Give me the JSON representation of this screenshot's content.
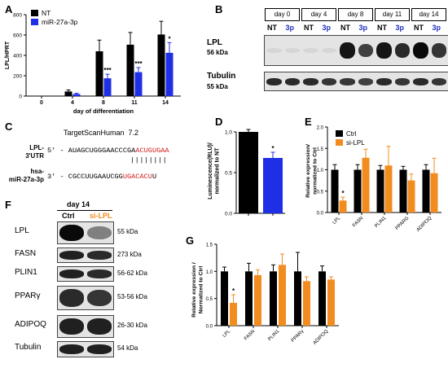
{
  "panels": {
    "A": "A",
    "B": "B",
    "C": "C",
    "D": "D",
    "E": "E",
    "F": "F",
    "G": "G"
  },
  "colors": {
    "black": "#000000",
    "blue": "#1f2fe6",
    "orange": "#f28c1e",
    "red": "#d51f1f"
  },
  "panelB": {
    "days": [
      "day 0",
      "day 4",
      "day 8",
      "day 11",
      "day 14"
    ],
    "lane_labels": [
      "NT",
      "3p",
      "NT",
      "3p",
      "NT",
      "3p",
      "NT",
      "3p",
      "NT",
      "3p"
    ],
    "rows": [
      {
        "name": "LPL",
        "size": "56 kDa",
        "intensity": [
          0.05,
          0.05,
          0.05,
          0.05,
          0.95,
          0.75,
          0.95,
          0.85,
          1.0,
          0.8
        ]
      },
      {
        "name": "Tubulin",
        "size": "55 kDa",
        "intensity": [
          0.85,
          0.85,
          0.85,
          0.8,
          0.8,
          0.75,
          0.85,
          0.8,
          0.85,
          0.8
        ]
      }
    ]
  },
  "panelC": {
    "title": "TargetScanHuman  7.2",
    "row1_label": "LPL-\n3'UTR",
    "row1_prefix": "5' - AUAGCUGGGAACCCGA",
    "row1_site": "ACUGUGAA",
    "bars": "||||||||",
    "row2_label": "hsa-\nmiR-27a-3p",
    "row2_prefix": "3' - CGCCUUGAAUCGG",
    "row2_site": "UGACACU",
    "row2_suffix": "U"
  },
  "panelF": {
    "header": "day 14",
    "lanes": [
      "Ctrl",
      "si-LPL"
    ],
    "rows": [
      {
        "name": "LPL",
        "size": "55 kDa",
        "intensity": [
          1.0,
          0.45
        ]
      },
      {
        "name": "FASN",
        "size": "273 kDa",
        "intensity": [
          0.9,
          0.85
        ]
      },
      {
        "name": "PLIN1",
        "size": "56-62 kDa",
        "intensity": [
          0.9,
          0.85
        ]
      },
      {
        "name": "PPARγ",
        "size": "53-56 kDa",
        "intensity": [
          0.85,
          0.8
        ]
      },
      {
        "name": "ADIPOQ",
        "size": "26-30 kDa",
        "intensity": [
          0.9,
          0.9
        ]
      },
      {
        "name": "Tubulin",
        "size": "54 kDa",
        "intensity": [
          0.9,
          0.9
        ]
      }
    ]
  },
  "chart_data": [
    {
      "id": "A",
      "type": "bar",
      "ylabel": "LPL/HPRT",
      "xlabel": "day of differentiation",
      "categories": [
        "0",
        "4",
        "8",
        "11",
        "14"
      ],
      "ylim": [
        0,
        800
      ],
      "yticks": [
        0,
        200,
        400,
        600,
        800
      ],
      "legend_position": "top-left",
      "series": [
        {
          "name": "NT",
          "color": "#000000",
          "values": [
            0,
            45,
            440,
            505,
            605
          ],
          "errors": [
            0,
            15,
            110,
            120,
            130
          ]
        },
        {
          "name": "miR-27a-3p",
          "color": "#1f2fe6",
          "values": [
            0,
            20,
            175,
            235,
            425
          ],
          "errors": [
            0,
            8,
            40,
            45,
            100
          ]
        }
      ],
      "annotations": [
        {
          "category": "8",
          "text": "***"
        },
        {
          "category": "11",
          "text": "***"
        },
        {
          "category": "14",
          "text": "*"
        }
      ]
    },
    {
      "id": "D",
      "type": "bar",
      "ylabel": "Luminescence(RLU)/\nnormalized to NT",
      "categories": [
        "NT",
        "3p"
      ],
      "ylim": [
        0,
        1.0
      ],
      "yticks": [
        0.0,
        0.5,
        1.0
      ],
      "values": [
        1.0,
        0.68
      ],
      "errors": [
        0.03,
        0.07
      ],
      "colors": [
        "#000000",
        "#1f2fe6"
      ],
      "annotations": [
        {
          "category": "3p",
          "text": "*"
        }
      ]
    },
    {
      "id": "E",
      "type": "bar",
      "ylabel": "Relative expression/\nnormalized to Ctrl",
      "categories": [
        "LPL",
        "FASN",
        "PLIN1",
        "PPARG",
        "ADIPOQ"
      ],
      "ylim": [
        0,
        2.0
      ],
      "yticks": [
        0.0,
        0.5,
        1.0,
        1.5,
        2.0
      ],
      "legend_position": "top-left",
      "series": [
        {
          "name": "Ctrl",
          "color": "#000000",
          "values": [
            1.0,
            1.0,
            1.0,
            1.0,
            1.0
          ],
          "errors": [
            0.12,
            0.12,
            0.1,
            0.08,
            0.12
          ]
        },
        {
          "name": "si-LPL",
          "color": "#f28c1e",
          "values": [
            0.28,
            1.28,
            1.1,
            0.75,
            0.92
          ],
          "errors": [
            0.08,
            0.2,
            0.45,
            0.15,
            0.35
          ]
        }
      ],
      "annotations": [
        {
          "category": "LPL",
          "text": "*"
        }
      ]
    },
    {
      "id": "G",
      "type": "bar",
      "ylabel": "Relative expression /\nNormalized to Ctrl",
      "categories": [
        "LPL",
        "FASN",
        "PLIN1",
        "PPARγ",
        "ADIPOQ"
      ],
      "ylim": [
        0,
        1.5
      ],
      "yticks": [
        0.0,
        0.5,
        1.0,
        1.5
      ],
      "series": [
        {
          "name": "Ctrl",
          "color": "#000000",
          "values": [
            1.0,
            1.0,
            1.0,
            1.0,
            1.0
          ],
          "errors": [
            0.08,
            0.15,
            0.12,
            0.35,
            0.1
          ]
        },
        {
          "name": "si-LPL",
          "color": "#f28c1e",
          "values": [
            0.42,
            0.93,
            1.12,
            0.82,
            0.85
          ],
          "errors": [
            0.15,
            0.1,
            0.2,
            0.08,
            0.05
          ]
        }
      ],
      "annotations": [
        {
          "category": "LPL",
          "text": "*"
        }
      ]
    }
  ]
}
